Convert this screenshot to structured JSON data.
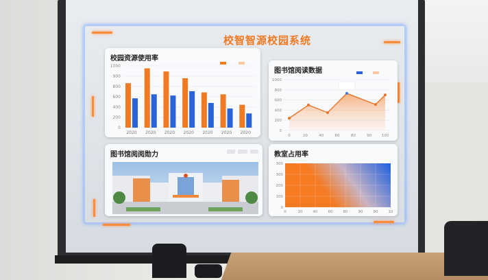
{
  "title": "校智智源校园系统",
  "panels": {
    "resource": {
      "title": "校园资源使用率"
    },
    "library_data": {
      "title": "图书馆阅读数据"
    },
    "library_image": {
      "title": "图书馆阅阅勋力"
    },
    "classroom": {
      "title": "教室占用率"
    }
  },
  "colors": {
    "orange": "#f07a22",
    "blue": "#2a63d8",
    "hud": "#8fb6ff"
  },
  "chart_data": [
    {
      "type": "bar",
      "title": "校园资源使用率",
      "categories": [
        "2020",
        "2020",
        "2020",
        "2020",
        "2020",
        "2020",
        "2020"
      ],
      "series": [
        {
          "values": [
            720,
            960,
            910,
            800,
            570,
            540,
            370
          ],
          "color": "#f07a22"
        },
        {
          "values": [
            475,
            540,
            520,
            590,
            400,
            310,
            230
          ],
          "color": "#2a63d8"
        }
      ],
      "yticks": [
        "0",
        "200",
        "400",
        "600",
        "800",
        "900",
        "1000"
      ],
      "ylim": [
        0,
        1000
      ],
      "grid": true,
      "legend": "top-right"
    },
    {
      "type": "area",
      "title": "图书馆阅读数据",
      "x": [
        0,
        20,
        40,
        60,
        90,
        100
      ],
      "y": [
        240,
        500,
        350,
        730,
        510,
        700
      ],
      "xticks": [
        "0",
        "20",
        "40",
        "60",
        "80",
        "90",
        "100"
      ],
      "yticks": [
        "0",
        "200",
        "400",
        "600",
        "800",
        "1000"
      ],
      "ylim": [
        0,
        1000
      ],
      "xlim": [
        0,
        100
      ],
      "highlight_index": 3,
      "grid": true,
      "legend": "top-right"
    },
    {
      "type": "heatmap",
      "title": "教室占用率",
      "yticks": [
        "0",
        "100",
        "200",
        "300",
        "300"
      ],
      "xticks": [
        "0",
        "20",
        "40",
        "60",
        "80",
        "90",
        "90",
        "10"
      ],
      "gradient": [
        "#f57a22",
        "#1f5fe0"
      ]
    }
  ]
}
